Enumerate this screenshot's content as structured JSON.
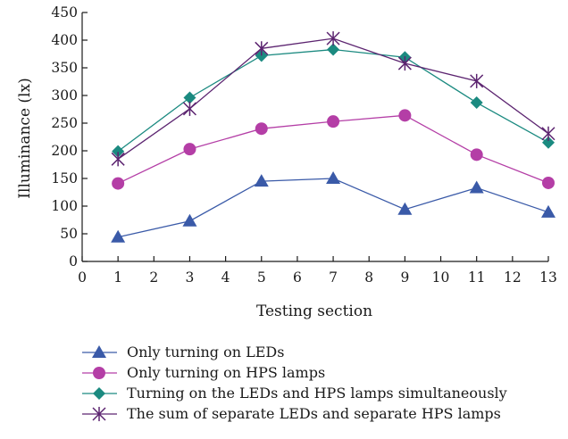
{
  "chart_data": {
    "type": "line",
    "title": "",
    "xlabel": "Testing section",
    "ylabel": "Illuminance (lx)",
    "xlim": [
      0,
      13
    ],
    "ylim": [
      0,
      450
    ],
    "xticks": [
      0,
      1,
      2,
      3,
      4,
      5,
      6,
      7,
      8,
      9,
      10,
      11,
      12,
      13
    ],
    "yticks": [
      0,
      50,
      100,
      150,
      200,
      250,
      300,
      350,
      400,
      450
    ],
    "grid": false,
    "legend_position": "bottom",
    "x": [
      1,
      3,
      5,
      7,
      9,
      11,
      13
    ],
    "series": [
      {
        "name": "Only turning on LEDs",
        "color": "#3a5aa8",
        "marker": "triangle",
        "values": [
          44,
          73,
          145,
          150,
          94,
          133,
          89
        ]
      },
      {
        "name": "Only turning on HPS lamps",
        "color": "#b43ea6",
        "marker": "circle",
        "values": [
          141,
          203,
          240,
          253,
          264,
          193,
          142
        ]
      },
      {
        "name": "Turning on the LEDs and HPS lamps simultaneously",
        "color": "#1b8a80",
        "marker": "diamond",
        "values": [
          199,
          296,
          372,
          383,
          369,
          287,
          215
        ]
      },
      {
        "name": "The sum of separate LEDs and separate HPS lamps",
        "color": "#5c2470",
        "marker": "star",
        "values": [
          185,
          276,
          385,
          403,
          358,
          326,
          231
        ]
      }
    ]
  }
}
